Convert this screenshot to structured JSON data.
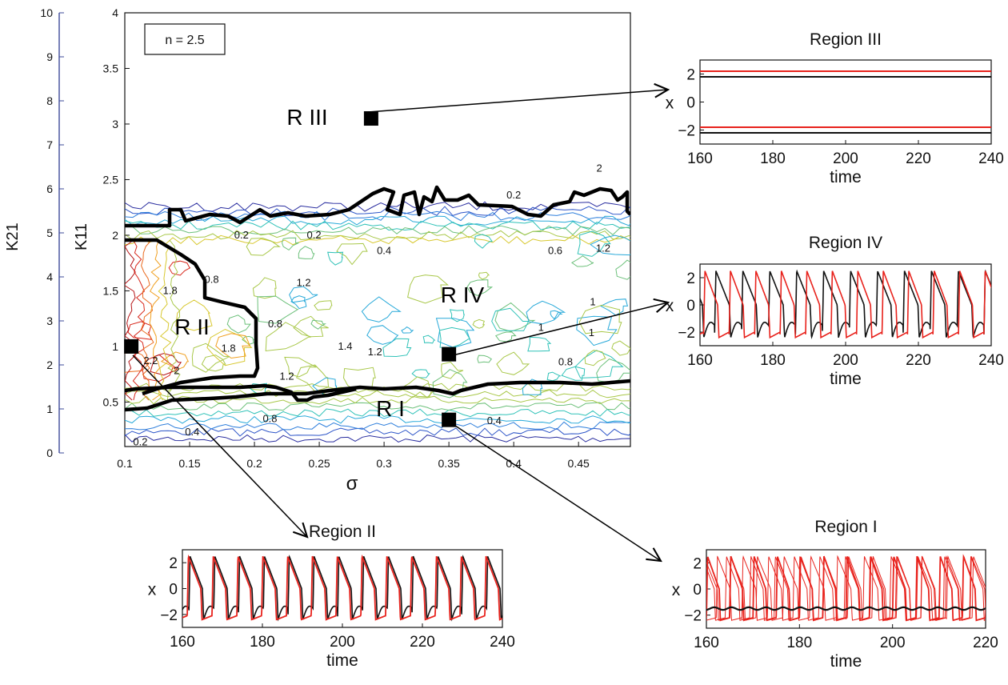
{
  "chart_data": [
    {
      "type": "contour",
      "xlabel": "σ",
      "ylabel": "K11",
      "ylabel2": "K21",
      "xlim": [
        0.1,
        0.49
      ],
      "ylim": [
        0.1,
        4
      ],
      "ylim2": [
        0,
        10
      ],
      "xticks": [
        "0.1",
        "0.15",
        "0.2",
        "0.25",
        "0.3",
        "0.35",
        "0.4",
        "0.45"
      ],
      "yticks": [
        "0.5",
        "1",
        "1.5",
        "2",
        "2.5",
        "3",
        "3.5",
        "4"
      ],
      "yticks2": [
        "0",
        "1",
        "2",
        "3",
        "4",
        "5",
        "6",
        "7",
        "8",
        "9",
        "10"
      ],
      "annotation": "n = 2.5",
      "regions": [
        {
          "label": "R I",
          "point": [
            0.35,
            0.34
          ]
        },
        {
          "label": "R II",
          "point": [
            0.105,
            1.0
          ]
        },
        {
          "label": "R III",
          "point": [
            0.29,
            3.05
          ]
        },
        {
          "label": "R IV",
          "point": [
            0.35,
            0.93
          ]
        }
      ],
      "contour_labels": [
        {
          "text": "0.2",
          "x": 0.19,
          "y": 2.0
        },
        {
          "text": "0.2",
          "x": 0.246,
          "y": 2.0
        },
        {
          "text": "0.2",
          "x": 0.4,
          "y": 2.36
        },
        {
          "text": "2",
          "x": 0.466,
          "y": 2.6
        },
        {
          "text": "0.4",
          "x": 0.3,
          "y": 1.86
        },
        {
          "text": "0.6",
          "x": 0.432,
          "y": 1.86
        },
        {
          "text": "1.2",
          "x": 0.469,
          "y": 1.88
        },
        {
          "text": "1.8",
          "x": 0.135,
          "y": 1.5
        },
        {
          "text": "0.8",
          "x": 0.167,
          "y": 1.6
        },
        {
          "text": "1.2",
          "x": 0.238,
          "y": 1.57
        },
        {
          "text": "0.8",
          "x": 0.216,
          "y": 1.2
        },
        {
          "text": "1.8",
          "x": 0.18,
          "y": 0.98
        },
        {
          "text": "1.4",
          "x": 0.27,
          "y": 1.0
        },
        {
          "text": "1",
          "x": 0.461,
          "y": 1.4
        },
        {
          "text": "1",
          "x": 0.421,
          "y": 1.17
        },
        {
          "text": "1",
          "x": 0.46,
          "y": 1.12
        },
        {
          "text": "1.2",
          "x": 0.293,
          "y": 0.95
        },
        {
          "text": "0.8",
          "x": 0.44,
          "y": 0.86
        },
        {
          "text": "2.2",
          "x": 0.12,
          "y": 0.87
        },
        {
          "text": "2",
          "x": 0.14,
          "y": 0.78
        },
        {
          "text": "1.2",
          "x": 0.225,
          "y": 0.73
        },
        {
          "text": "0.8",
          "x": 0.212,
          "y": 0.35
        },
        {
          "text": "0.4",
          "x": 0.152,
          "y": 0.23
        },
        {
          "text": "0.4",
          "x": 0.385,
          "y": 0.33
        },
        {
          "text": "0.2",
          "x": 0.112,
          "y": 0.14
        }
      ]
    },
    {
      "type": "line",
      "title": "Region III",
      "xlabel": "time",
      "ylabel": "x",
      "xlim": [
        160,
        240
      ],
      "ylim": [
        -3,
        3
      ],
      "xticks": [
        "160",
        "180",
        "200",
        "220",
        "240"
      ],
      "yticks": [
        "-2",
        "0",
        "2"
      ],
      "series_colors": [
        "#e8221c",
        "#111111"
      ]
    },
    {
      "type": "line",
      "title": "Region IV",
      "xlabel": "time",
      "ylabel": "x",
      "xlim": [
        160,
        240
      ],
      "ylim": [
        -3,
        3
      ],
      "xticks": [
        "160",
        "180",
        "200",
        "220",
        "240"
      ],
      "yticks": [
        "-2",
        "0",
        "2"
      ],
      "series_colors": [
        "#e8221c",
        "#111111"
      ]
    },
    {
      "type": "line",
      "title": "Region II",
      "xlabel": "time",
      "ylabel": "x",
      "xlim": [
        160,
        240
      ],
      "ylim": [
        -3,
        3
      ],
      "xticks": [
        "160",
        "180",
        "200",
        "220",
        "240"
      ],
      "yticks": [
        "-2",
        "0",
        "2"
      ],
      "series_colors": [
        "#e8221c",
        "#111111"
      ]
    },
    {
      "type": "line",
      "title": "Region I",
      "xlabel": "time",
      "ylabel": "x",
      "xlim": [
        160,
        220
      ],
      "ylim": [
        -3,
        3
      ],
      "xticks": [
        "160",
        "180",
        "200",
        "220"
      ],
      "yticks": [
        "-2",
        "0",
        "2"
      ],
      "series_colors": [
        "#e8221c",
        "#111111"
      ]
    }
  ]
}
